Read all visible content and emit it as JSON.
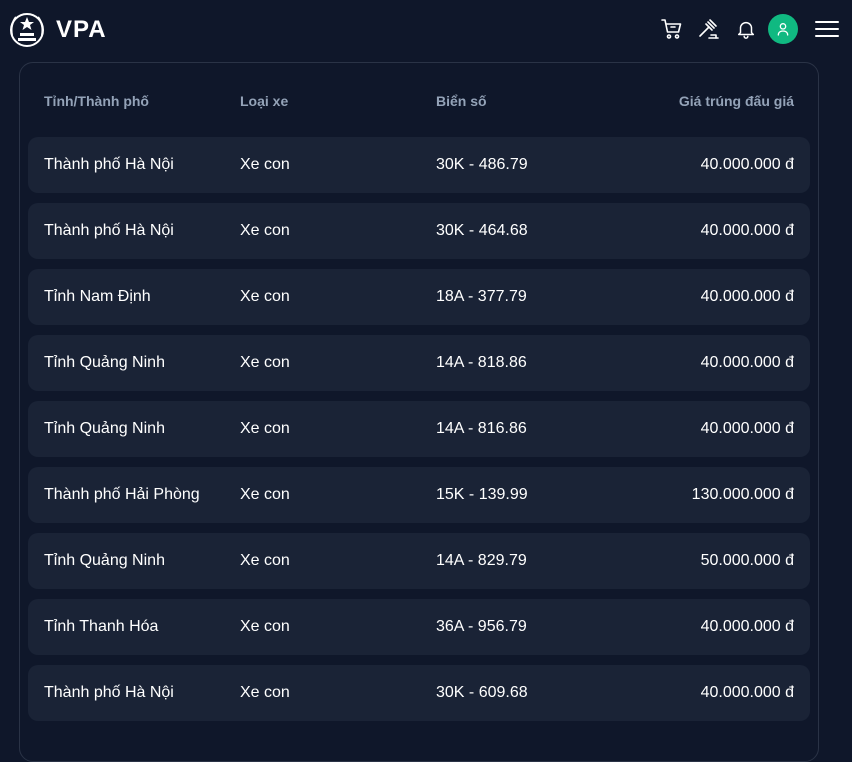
{
  "header": {
    "logo_text": "VPA",
    "icons": [
      "cart-icon",
      "gavel-icon",
      "bell-icon",
      "user-avatar-icon",
      "menu-icon"
    ],
    "accent_color": "#10b981"
  },
  "table": {
    "columns": [
      "Tỉnh/Thành phố",
      "Loại xe",
      "Biển số",
      "Giá trúng đấu giá"
    ],
    "rows": [
      {
        "province": "Thành phố Hà Nội",
        "vehicle_type": "Xe con",
        "plate": "30K - 486.79",
        "price": "40.000.000 đ"
      },
      {
        "province": "Thành phố Hà Nội",
        "vehicle_type": "Xe con",
        "plate": "30K - 464.68",
        "price": "40.000.000 đ"
      },
      {
        "province": "Tỉnh Nam Định",
        "vehicle_type": "Xe con",
        "plate": "18A - 377.79",
        "price": "40.000.000 đ"
      },
      {
        "province": "Tỉnh Quảng Ninh",
        "vehicle_type": "Xe con",
        "plate": "14A - 818.86",
        "price": "40.000.000 đ"
      },
      {
        "province": "Tỉnh Quảng Ninh",
        "vehicle_type": "Xe con",
        "plate": "14A - 816.86",
        "price": "40.000.000 đ"
      },
      {
        "province": "Thành phố Hải Phòng",
        "vehicle_type": "Xe con",
        "plate": "15K - 139.99",
        "price": "130.000.000 đ"
      },
      {
        "province": "Tỉnh Quảng Ninh",
        "vehicle_type": "Xe con",
        "plate": "14A - 829.79",
        "price": "50.000.000 đ"
      },
      {
        "province": "Tỉnh Thanh Hóa",
        "vehicle_type": "Xe con",
        "plate": "36A - 956.79",
        "price": "40.000.000 đ"
      },
      {
        "province": "Thành phố Hà Nội",
        "vehicle_type": "Xe con",
        "plate": "30K - 609.68",
        "price": "40.000.000 đ"
      }
    ]
  }
}
